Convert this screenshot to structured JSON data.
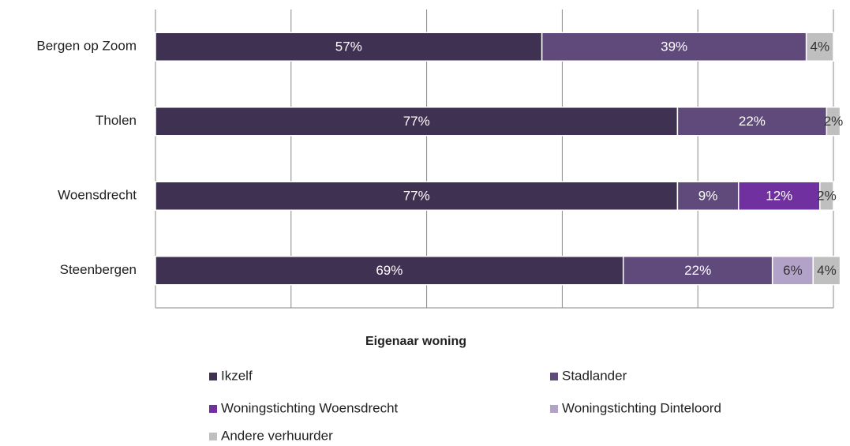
{
  "chart_data": {
    "type": "stacked_bar_horizontal",
    "categories": [
      "Bergen op Zoom",
      "Tholen",
      "Woensdrecht",
      "Steenbergen"
    ],
    "series": [
      {
        "name": "Ikzelf",
        "color": "#3f3151",
        "values": [
          57,
          77,
          77,
          69
        ],
        "value_labels": [
          "57%",
          "77%",
          "77%",
          "69%"
        ]
      },
      {
        "name": "Stadlander",
        "color": "#604a7b",
        "values": [
          39,
          22,
          9,
          22
        ],
        "value_labels": [
          "39%",
          "22%",
          "9%",
          "22%"
        ]
      },
      {
        "name": "Woningstichting Woensdrecht",
        "color": "#7030a0",
        "values": [
          null,
          null,
          12,
          null
        ],
        "value_labels": [
          null,
          null,
          "12%",
          null
        ]
      },
      {
        "name": "Woningstichting Dinteloord",
        "color": "#b3a2c7",
        "values": [
          null,
          null,
          null,
          6
        ],
        "value_labels": [
          null,
          null,
          null,
          "6%"
        ]
      },
      {
        "name": "Andere verhuurder",
        "color": "#bfbfbf",
        "values": [
          4,
          2,
          2,
          4
        ],
        "value_labels": [
          "4%",
          "2%",
          "2%",
          "4%"
        ]
      }
    ],
    "xlim": [
      0,
      100
    ],
    "xticks": [
      0,
      20,
      40,
      60,
      80,
      100
    ],
    "grid": true,
    "legend_title": "Eigenaar woning",
    "legend_position": "bottom"
  }
}
